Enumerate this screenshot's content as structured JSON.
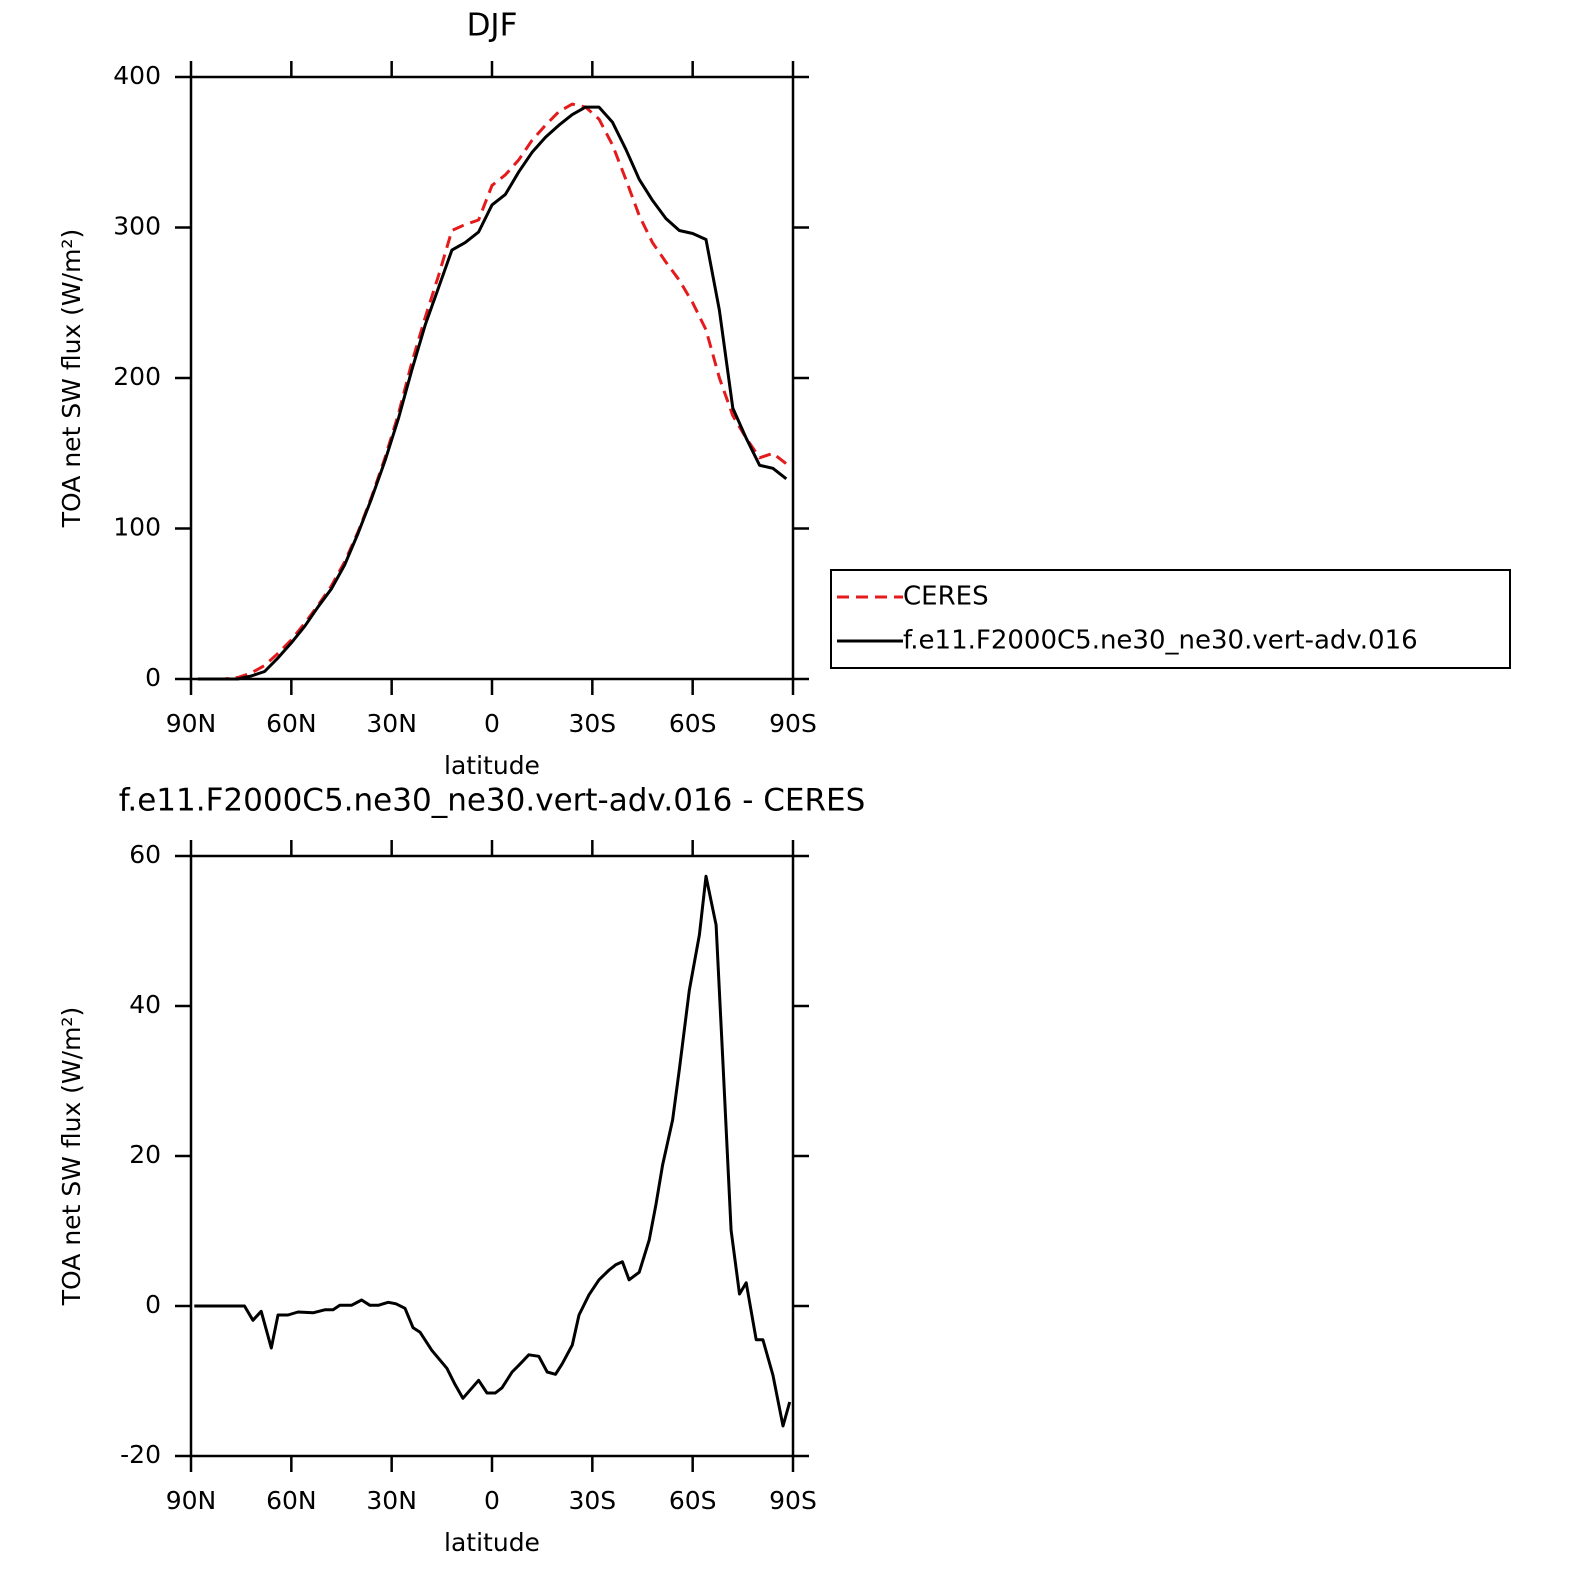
{
  "chart_data": [
    {
      "type": "line",
      "title": "DJF",
      "xlabel": "latitude",
      "ylabel": "TOA net SW flux (W/m²)",
      "xlim": [
        90,
        -90
      ],
      "ylim": [
        0,
        400
      ],
      "xticks": [
        {
          "value": 90,
          "label": "90N"
        },
        {
          "value": 60,
          "label": "60N"
        },
        {
          "value": 30,
          "label": "30N"
        },
        0,
        {
          "value": -30,
          "label": "30S"
        },
        {
          "value": -60,
          "label": "60S"
        },
        {
          "value": -90,
          "label": "90S"
        }
      ],
      "yticks": [
        0,
        100,
        200,
        300,
        400
      ],
      "legend": "right",
      "x": [
        88,
        84,
        80,
        76,
        72,
        68,
        64,
        60,
        56,
        52,
        48,
        44,
        40,
        36,
        32,
        28,
        24,
        20,
        16,
        12,
        8,
        4,
        0,
        -4,
        -8,
        -12,
        -16,
        -20,
        -24,
        -28,
        -32,
        -36,
        -40,
        -44,
        -48,
        -52,
        -56,
        -60,
        -64,
        -68,
        -72,
        -76,
        -80,
        -84,
        -88
      ],
      "series": [
        {
          "name": "CERES",
          "color": "#e41a1c",
          "dash": "dashed",
          "values": [
            0,
            0,
            0,
            1,
            4,
            9,
            17,
            26,
            37,
            49,
            62,
            78,
            98,
            121,
            147,
            176,
            210,
            240,
            268,
            298,
            302,
            305,
            328,
            335,
            345,
            358,
            368,
            377,
            382,
            380,
            372,
            355,
            332,
            308,
            290,
            277,
            265,
            250,
            232,
            200,
            175,
            160,
            147,
            150,
            143
          ]
        },
        {
          "name": "f.e11.F2000C5.ne30_ne30.vert-adv.016",
          "color": "#000000",
          "dash": "solid",
          "values": [
            0,
            0,
            0,
            0,
            2,
            5,
            14,
            24,
            35,
            48,
            60,
            76,
            97,
            120,
            145,
            173,
            205,
            235,
            260,
            285,
            290,
            297,
            315,
            322,
            337,
            350,
            360,
            368,
            375,
            380,
            380,
            370,
            352,
            332,
            318,
            306,
            298,
            296,
            292,
            245,
            180,
            160,
            142,
            140,
            133
          ]
        }
      ]
    },
    {
      "type": "line",
      "title": "f.e11.F2000C5.ne30_ne30.vert-adv.016 - CERES",
      "xlabel": "latitude",
      "ylabel": "TOA net SW flux (W/m²)",
      "xlim": [
        90,
        -90
      ],
      "ylim": [
        -20,
        60
      ],
      "xticks": [
        {
          "value": 90,
          "label": "90N"
        },
        {
          "value": 60,
          "label": "60N"
        },
        {
          "value": 30,
          "label": "30N"
        },
        0,
        {
          "value": -30,
          "label": "30S"
        },
        {
          "value": -60,
          "label": "60S"
        },
        {
          "value": -90,
          "label": "90S"
        }
      ],
      "yticks": [
        -20,
        0,
        20,
        40,
        60
      ],
      "x": [
        89,
        74,
        71.5,
        69,
        66,
        64,
        61,
        58,
        53.5,
        50,
        47.5,
        45.5,
        42,
        39,
        36.5,
        34,
        31,
        28.7,
        26,
        23.6,
        21.5,
        18,
        13.5,
        11,
        8.7,
        4,
        1.5,
        -1,
        -3,
        -6,
        -8,
        -11,
        -14,
        -16.5,
        -19,
        -21,
        -24,
        -26,
        -29,
        -32,
        -35,
        -37,
        -39,
        -41,
        -44,
        -47,
        -49,
        -51,
        -54,
        -56,
        -59,
        -62,
        -64,
        -67,
        -69,
        -71.5,
        -74,
        -76,
        -79,
        -81,
        -84,
        -87,
        -89
      ],
      "series": [
        {
          "color": "#000000",
          "dash": "solid",
          "values": [
            0,
            0,
            -1.9,
            -0.7,
            -5.6,
            -1.2,
            -1.2,
            -0.8,
            -0.9,
            -0.5,
            -0.5,
            0.1,
            0.1,
            0.8,
            0.1,
            0.1,
            0.5,
            0.3,
            -0.3,
            -2.9,
            -3.5,
            -5.9,
            -8.3,
            -10.5,
            -12.3,
            -9.9,
            -11.6,
            -11.6,
            -10.9,
            -8.8,
            -7.9,
            -6.5,
            -6.7,
            -8.8,
            -9.1,
            -7.7,
            -5.2,
            -1.2,
            1.5,
            3.5,
            4.8,
            5.5,
            5.9,
            3.5,
            4.5,
            8.8,
            13.5,
            18.8,
            24.8,
            31.5,
            42.1,
            49.5,
            57.3,
            50.8,
            32.8,
            10.1,
            1.6,
            3.1,
            -4.5,
            -4.5,
            -9.2,
            -16,
            -12.8
          ]
        }
      ]
    }
  ]
}
